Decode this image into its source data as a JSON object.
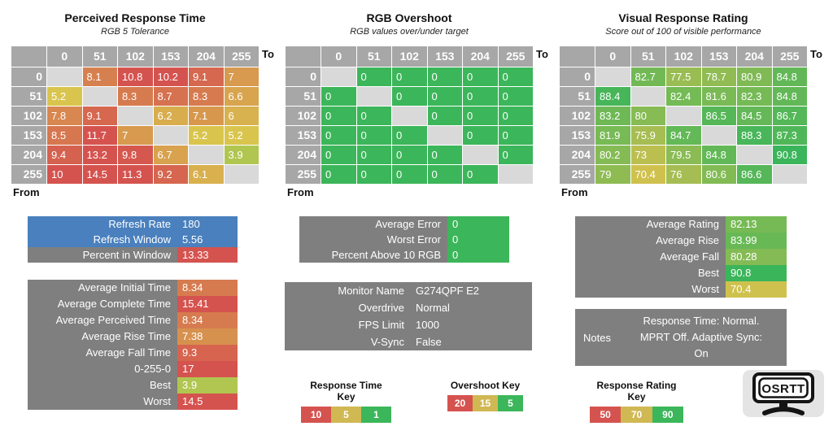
{
  "colors": {
    "header_gray": "#a7a7a7",
    "diag_gray": "#d9d9d9",
    "panel_gray": "#7f7f7f",
    "blue": "#4a80bd",
    "red": "#d5534f",
    "gold": "#d0b853",
    "green": "#3cb65a"
  },
  "scales": {
    "time": {
      "stops": [
        [
          1,
          "#45bb55"
        ],
        [
          5,
          "#d9ca4e"
        ],
        [
          10,
          "#d5534f"
        ]
      ]
    },
    "overshoot": {
      "stops": [
        [
          5,
          "#3cb65a"
        ],
        [
          15,
          "#d0b853"
        ],
        [
          20,
          "#d5534f"
        ]
      ]
    },
    "rating": {
      "stops": [
        [
          50,
          "#d5534f"
        ],
        [
          70,
          "#d2c14e"
        ],
        [
          90,
          "#3bb55a"
        ]
      ]
    }
  },
  "chart_data": [
    {
      "type": "heatmap",
      "title": "Perceived Response Time",
      "subtitle": "RGB 5 Tolerance",
      "x_label": "To",
      "y_label": "From",
      "color_scale": "time",
      "categories_x": [
        "0",
        "51",
        "102",
        "153",
        "204",
        "255"
      ],
      "categories_y": [
        "0",
        "51",
        "102",
        "153",
        "204",
        "255"
      ],
      "values": [
        [
          null,
          8.1,
          10.8,
          10.2,
          9.1,
          7
        ],
        [
          5.2,
          null,
          8.3,
          8.7,
          8.3,
          6.6
        ],
        [
          7.8,
          9.1,
          null,
          6.2,
          7.1,
          6
        ],
        [
          8.5,
          11.7,
          7,
          null,
          5.2,
          5.2
        ],
        [
          9.4,
          13.2,
          9.8,
          6.7,
          null,
          3.9
        ],
        [
          10,
          14.5,
          11.3,
          9.2,
          6.1,
          null
        ]
      ]
    },
    {
      "type": "heatmap",
      "title": "RGB Overshoot",
      "subtitle": "RGB values over/under target",
      "x_label": "To",
      "y_label": "From",
      "color_scale": "overshoot",
      "categories_x": [
        "0",
        "51",
        "102",
        "153",
        "204",
        "255"
      ],
      "categories_y": [
        "0",
        "51",
        "102",
        "153",
        "204",
        "255"
      ],
      "values": [
        [
          null,
          0,
          0,
          0,
          0,
          0
        ],
        [
          0,
          null,
          0,
          0,
          0,
          0
        ],
        [
          0,
          0,
          null,
          0,
          0,
          0
        ],
        [
          0,
          0,
          0,
          null,
          0,
          0
        ],
        [
          0,
          0,
          0,
          0,
          null,
          0
        ],
        [
          0,
          0,
          0,
          0,
          0,
          null
        ]
      ]
    },
    {
      "type": "heatmap",
      "title": "Visual Response Rating",
      "subtitle": "Score out of 100 of visible performance",
      "x_label": "To",
      "y_label": "From",
      "color_scale": "rating",
      "categories_x": [
        "0",
        "51",
        "102",
        "153",
        "204",
        "255"
      ],
      "categories_y": [
        "0",
        "51",
        "102",
        "153",
        "204",
        "255"
      ],
      "values": [
        [
          null,
          82.7,
          77.5,
          78.7,
          80.9,
          84.8
        ],
        [
          88.4,
          null,
          82.4,
          81.6,
          82.3,
          84.8
        ],
        [
          83.2,
          80,
          null,
          86.5,
          84.5,
          86.7
        ],
        [
          81.9,
          75.9,
          84.7,
          null,
          88.3,
          87.3
        ],
        [
          80.2,
          73,
          79.5,
          84.8,
          null,
          90.8
        ],
        [
          79,
          70.4,
          76,
          80.6,
          86.6,
          null
        ]
      ]
    }
  ],
  "panels": {
    "refresh": {
      "rows": [
        {
          "label": "Refresh Rate",
          "value": "180",
          "label_bg": "blue",
          "value_bg": "blue"
        },
        {
          "label": "Refresh Window",
          "value": "5.56",
          "label_bg": "blue",
          "value_bg": "blue"
        },
        {
          "label": "Percent in Window",
          "value": "13.33",
          "value_bg": "red"
        }
      ]
    },
    "time_stats": {
      "rows": [
        {
          "label": "Average Initial Time",
          "value": "8.34",
          "scale": "time"
        },
        {
          "label": "Average Complete Time",
          "value": "15.41",
          "scale": "time"
        },
        {
          "label": "Average Perceived Time",
          "value": "8.34",
          "scale": "time"
        },
        {
          "label": "Average Rise Time",
          "value": "7.38",
          "scale": "time"
        },
        {
          "label": "Average Fall Time",
          "value": "9.3",
          "scale": "time"
        },
        {
          "label": "0-255-0",
          "value": "17",
          "scale": "time"
        },
        {
          "label": "Best",
          "value": "3.9",
          "scale": "time"
        },
        {
          "label": "Worst",
          "value": "14.5",
          "scale": "time"
        }
      ]
    },
    "error_stats": {
      "rows": [
        {
          "label": "Average Error",
          "value": "0",
          "scale": "overshoot"
        },
        {
          "label": "Worst Error",
          "value": "0",
          "scale": "overshoot"
        },
        {
          "label": "Percent Above 10 RGB",
          "value": "0",
          "scale": "overshoot"
        }
      ]
    },
    "monitor_info": {
      "rows": [
        {
          "label": "Monitor Name",
          "value": "G274QPF E2"
        },
        {
          "label": "Overdrive",
          "value": "Normal"
        },
        {
          "label": "FPS Limit",
          "value": "1000"
        },
        {
          "label": "V-Sync",
          "value": "False"
        }
      ]
    },
    "rating_stats": {
      "rows": [
        {
          "label": "Average Rating",
          "value": "82.13",
          "scale": "rating"
        },
        {
          "label": "Average Rise",
          "value": "83.99",
          "scale": "rating"
        },
        {
          "label": "Average Fall",
          "value": "80.28",
          "scale": "rating"
        },
        {
          "label": "Best",
          "value": "90.8",
          "scale": "rating"
        },
        {
          "label": "Worst",
          "value": "70.4",
          "scale": "rating"
        }
      ]
    }
  },
  "notes": {
    "label": "Notes",
    "value": "Response Time: Normal. MPRT Off. Adaptive Sync: On"
  },
  "keys": [
    {
      "title": "Response Time Key",
      "stops": [
        {
          "label": "10",
          "color": "red"
        },
        {
          "label": "5",
          "color": "gold"
        },
        {
          "label": "1",
          "color": "green"
        }
      ]
    },
    {
      "title": "Overshoot Key",
      "stops": [
        {
          "label": "20",
          "color": "red"
        },
        {
          "label": "15",
          "color": "gold"
        },
        {
          "label": "5",
          "color": "green"
        }
      ]
    },
    {
      "title": "Response Rating Key",
      "stops": [
        {
          "label": "50",
          "color": "red"
        },
        {
          "label": "70",
          "color": "gold"
        },
        {
          "label": "90",
          "color": "green"
        }
      ]
    }
  ],
  "logo": {
    "text": "OSRTT"
  }
}
